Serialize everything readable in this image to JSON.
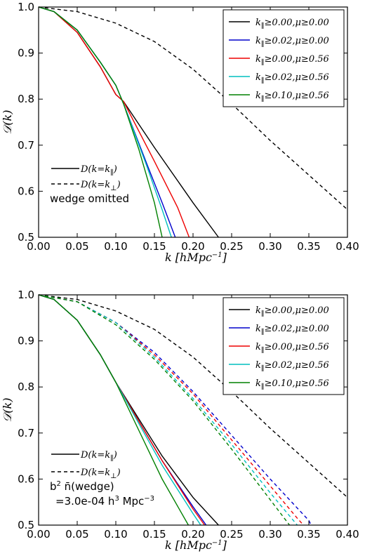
{
  "chart_data": [
    {
      "type": "line",
      "xlabel": "k [hMpc⁻¹]",
      "ylabel": "𝒟(k)",
      "xlim": [
        0.0,
        0.4
      ],
      "ylim": [
        0.5,
        1.0
      ],
      "xticks": [
        "0.00",
        "0.05",
        "0.10",
        "0.15",
        "0.20",
        "0.25",
        "0.30",
        "0.35",
        "0.40"
      ],
      "yticks": [
        "0.5",
        "0.6",
        "0.7",
        "0.8",
        "0.9",
        "1.0"
      ],
      "legend_placement": "top-right",
      "legend": [
        {
          "label": "k∥≥0.00,μ≥0.00",
          "color": "#000000"
        },
        {
          "label": "k∥≥0.02,μ≥0.00",
          "color": "#0000cc"
        },
        {
          "label": "k∥≥0.00,μ≥0.56",
          "color": "#ee0000"
        },
        {
          "label": "k∥≥0.02,μ≥0.56",
          "color": "#00bfbf"
        },
        {
          "label": "k∥≥0.10,μ≥0.56",
          "color": "#008000"
        }
      ],
      "style_legend": [
        {
          "label": "D(k=k∥)",
          "dash": "solid"
        },
        {
          "label": "D(k=k⊥)",
          "dash": "dashed"
        }
      ],
      "annotation": [
        "wedge omitted"
      ],
      "series": [
        {
          "color": "#000000",
          "dash": "dashed",
          "x": [
            0,
            0.05,
            0.1,
            0.15,
            0.2,
            0.25,
            0.3,
            0.35,
            0.4
          ],
          "y": [
            1.0,
            0.99,
            0.965,
            0.925,
            0.865,
            0.79,
            0.71,
            0.635,
            0.56
          ]
        },
        {
          "color": "#000000",
          "dash": "solid",
          "x": [
            0,
            0.02,
            0.05,
            0.08,
            0.1,
            0.11,
            0.15,
            0.2,
            0.233
          ],
          "y": [
            1.0,
            0.99,
            0.945,
            0.87,
            0.81,
            0.795,
            0.695,
            0.575,
            0.5
          ]
        },
        {
          "color": "#0000cc",
          "dash": "solid",
          "x": [
            0,
            0.02,
            0.05,
            0.08,
            0.1,
            0.11,
            0.14,
            0.16,
            0.177
          ],
          "y": [
            1.0,
            0.99,
            0.95,
            0.88,
            0.83,
            0.79,
            0.66,
            0.575,
            0.5
          ]
        },
        {
          "color": "#ee0000",
          "dash": "solid",
          "x": [
            0,
            0.02,
            0.05,
            0.08,
            0.1,
            0.11,
            0.15,
            0.18,
            0.195
          ],
          "y": [
            1.0,
            0.99,
            0.945,
            0.87,
            0.81,
            0.795,
            0.665,
            0.565,
            0.5
          ]
        },
        {
          "color": "#00bfbf",
          "dash": "solid",
          "x": [
            0,
            0.02,
            0.05,
            0.08,
            0.1,
            0.11,
            0.14,
            0.16,
            0.172
          ],
          "y": [
            1.0,
            0.99,
            0.95,
            0.88,
            0.83,
            0.79,
            0.655,
            0.56,
            0.5
          ]
        },
        {
          "color": "#008000",
          "dash": "solid",
          "x": [
            0,
            0.02,
            0.05,
            0.08,
            0.1,
            0.11,
            0.13,
            0.15,
            0.16
          ],
          "y": [
            1.0,
            0.99,
            0.95,
            0.88,
            0.83,
            0.79,
            0.69,
            0.575,
            0.5
          ]
        }
      ]
    },
    {
      "type": "line",
      "xlabel": "k [hMpc⁻¹]",
      "ylabel": "𝒟(k)",
      "xlim": [
        0.0,
        0.4
      ],
      "ylim": [
        0.5,
        1.0
      ],
      "xticks": [
        "0.00",
        "0.05",
        "0.10",
        "0.15",
        "0.20",
        "0.25",
        "0.30",
        "0.35",
        "0.40"
      ],
      "yticks": [
        "0.5",
        "0.6",
        "0.7",
        "0.8",
        "0.9",
        "1.0"
      ],
      "legend_placement": "top-right",
      "legend": [
        {
          "label": "k∥≥0.00,μ≥0.00",
          "color": "#000000"
        },
        {
          "label": "k∥≥0.02,μ≥0.00",
          "color": "#0000cc"
        },
        {
          "label": "k∥≥0.00,μ≥0.56",
          "color": "#ee0000"
        },
        {
          "label": "k∥≥0.02,μ≥0.56",
          "color": "#00bfbf"
        },
        {
          "label": "k∥≥0.10,μ≥0.56",
          "color": "#008000"
        }
      ],
      "style_legend": [
        {
          "label": "D(k=k∥)",
          "dash": "solid"
        },
        {
          "label": "D(k=k⊥)",
          "dash": "dashed"
        }
      ],
      "annotation": [
        "b² n̄(wedge)",
        "=3.0e-04 h³ Mpc⁻³"
      ],
      "series": [
        {
          "color": "#000000",
          "dash": "dashed",
          "x": [
            0,
            0.05,
            0.1,
            0.15,
            0.2,
            0.25,
            0.3,
            0.35,
            0.4
          ],
          "y": [
            1.0,
            0.99,
            0.965,
            0.925,
            0.865,
            0.79,
            0.71,
            0.635,
            0.56
          ]
        },
        {
          "color": "#0000cc",
          "dash": "dashed",
          "x": [
            0,
            0.05,
            0.1,
            0.15,
            0.2,
            0.25,
            0.3,
            0.35,
            0.353
          ],
          "y": [
            1.0,
            0.985,
            0.94,
            0.875,
            0.79,
            0.695,
            0.6,
            0.51,
            0.5
          ]
        },
        {
          "color": "#ee0000",
          "dash": "dashed",
          "x": [
            0,
            0.05,
            0.1,
            0.15,
            0.2,
            0.25,
            0.3,
            0.335,
            0.343
          ],
          "y": [
            1.0,
            0.985,
            0.94,
            0.87,
            0.785,
            0.685,
            0.585,
            0.515,
            0.5
          ]
        },
        {
          "color": "#00bfbf",
          "dash": "dashed",
          "x": [
            0,
            0.05,
            0.1,
            0.15,
            0.2,
            0.25,
            0.3,
            0.335
          ],
          "y": [
            1.0,
            0.985,
            0.94,
            0.865,
            0.775,
            0.675,
            0.57,
            0.5
          ]
        },
        {
          "color": "#008000",
          "dash": "dashed",
          "x": [
            0,
            0.05,
            0.1,
            0.15,
            0.2,
            0.25,
            0.3,
            0.325
          ],
          "y": [
            1.0,
            0.985,
            0.935,
            0.86,
            0.77,
            0.665,
            0.555,
            0.5
          ]
        },
        {
          "color": "#000000",
          "dash": "solid",
          "x": [
            0,
            0.02,
            0.05,
            0.08,
            0.1,
            0.13,
            0.16,
            0.2,
            0.233
          ],
          "y": [
            1.0,
            0.99,
            0.945,
            0.87,
            0.81,
            0.73,
            0.65,
            0.56,
            0.5
          ]
        },
        {
          "color": "#0000cc",
          "dash": "solid",
          "x": [
            0,
            0.02,
            0.05,
            0.08,
            0.1,
            0.13,
            0.16,
            0.2,
            0.217
          ],
          "y": [
            1.0,
            0.99,
            0.945,
            0.87,
            0.81,
            0.725,
            0.64,
            0.54,
            0.5
          ]
        },
        {
          "color": "#ee0000",
          "dash": "solid",
          "x": [
            0,
            0.02,
            0.05,
            0.08,
            0.1,
            0.13,
            0.16,
            0.2,
            0.215
          ],
          "y": [
            1.0,
            0.99,
            0.945,
            0.87,
            0.81,
            0.725,
            0.64,
            0.535,
            0.5
          ]
        },
        {
          "color": "#00bfbf",
          "dash": "solid",
          "x": [
            0,
            0.02,
            0.05,
            0.08,
            0.1,
            0.13,
            0.16,
            0.2,
            0.21
          ],
          "y": [
            1.0,
            0.99,
            0.945,
            0.87,
            0.81,
            0.72,
            0.63,
            0.525,
            0.5
          ]
        },
        {
          "color": "#008000",
          "dash": "solid",
          "x": [
            0,
            0.02,
            0.05,
            0.08,
            0.1,
            0.13,
            0.16,
            0.194
          ],
          "y": [
            1.0,
            0.99,
            0.945,
            0.87,
            0.81,
            0.705,
            0.6,
            0.5
          ]
        }
      ]
    }
  ]
}
